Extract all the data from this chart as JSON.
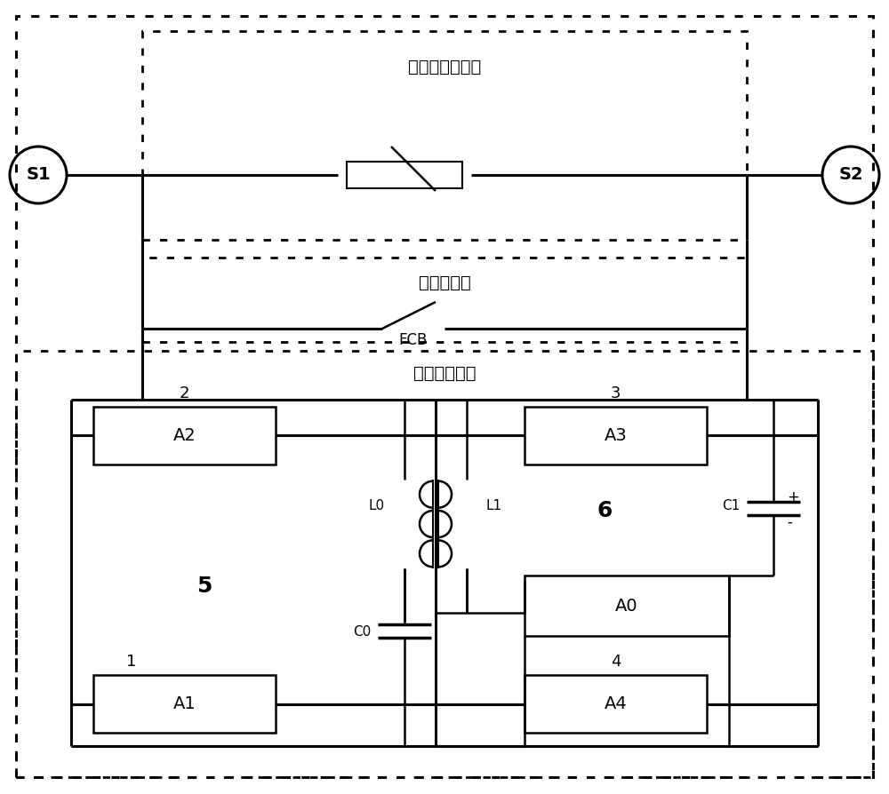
{
  "bg_color": "#ffffff",
  "line_color": "#000000",
  "labels": {
    "overvoltage": "过电压限制电路",
    "main_current": "主电流电路",
    "transfer_current": "转移电流电路",
    "fcb": "FCB",
    "S1": "S1",
    "S2": "S2",
    "A0": "A0",
    "A1": "A1",
    "A2": "A2",
    "A3": "A3",
    "A4": "A4",
    "L0": "L0",
    "L1": "L1",
    "C0": "C0",
    "C1": "C1",
    "n1": "1",
    "n2": "2",
    "n3": "3",
    "n4": "4",
    "n5": "5",
    "n6": "6",
    "plus": "+",
    "minus": "-"
  }
}
